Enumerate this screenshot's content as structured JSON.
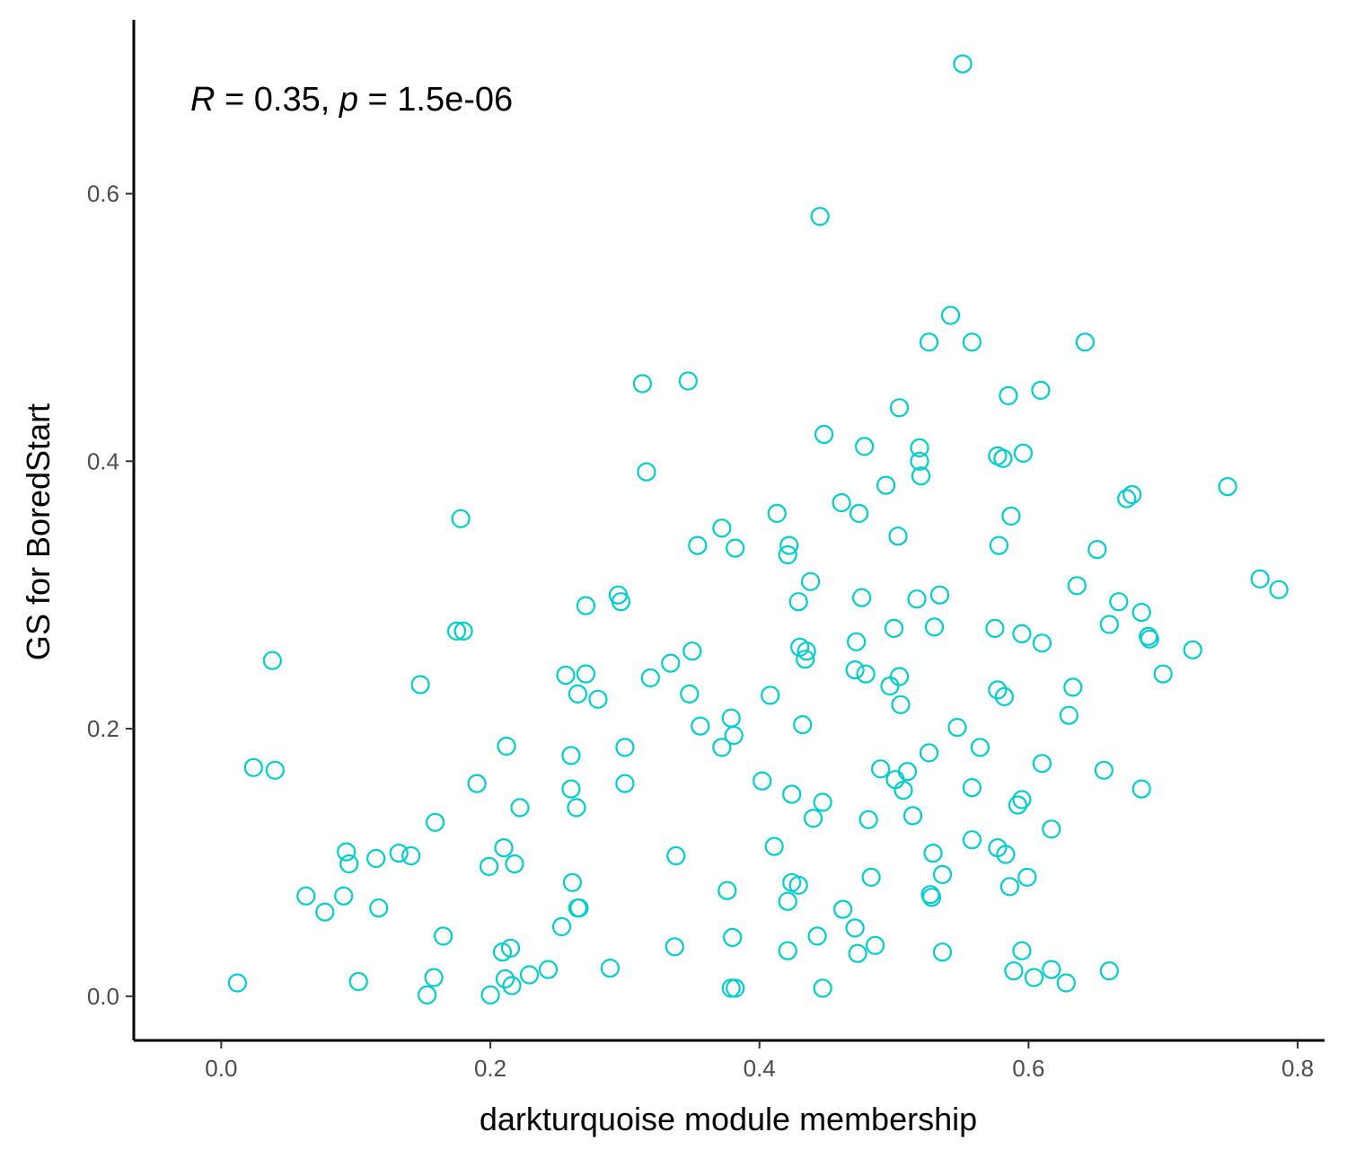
{
  "chart_data": {
    "type": "scatter",
    "title": "",
    "xlabel": "darkturquoise module membership",
    "ylabel": "GS for BoredStart",
    "xlim": [
      -0.065,
      0.82
    ],
    "ylim": [
      -0.033,
      0.73
    ],
    "x_ticks": [
      0.0,
      0.2,
      0.4,
      0.6,
      0.8
    ],
    "y_ticks": [
      0.0,
      0.2,
      0.4,
      0.6
    ],
    "x_tick_labels": [
      "0.0",
      "0.2",
      "0.4",
      "0.6",
      "0.8"
    ],
    "y_tick_labels": [
      "0.0",
      "0.2",
      "0.4",
      "0.6"
    ],
    "grid": false,
    "legend": "none",
    "marker": "open-circle",
    "point_color": "#00CED1",
    "annotation": {
      "r_symbol": "R",
      "r_rest": " = 0.35, ",
      "p_symbol": "p",
      "p_rest": " = 1.5e-06"
    },
    "series": [
      {
        "points": [
          [
            0.012,
            0.01
          ],
          [
            0.024,
            0.171
          ],
          [
            0.038,
            0.251
          ],
          [
            0.04,
            0.169
          ],
          [
            0.063,
            0.075
          ],
          [
            0.077,
            0.063
          ],
          [
            0.091,
            0.075
          ],
          [
            0.093,
            0.108
          ],
          [
            0.095,
            0.099
          ],
          [
            0.102,
            0.011
          ],
          [
            0.115,
            0.103
          ],
          [
            0.117,
            0.066
          ],
          [
            0.132,
            0.107
          ],
          [
            0.141,
            0.105
          ],
          [
            0.148,
            0.233
          ],
          [
            0.153,
            0.001
          ],
          [
            0.158,
            0.014
          ],
          [
            0.159,
            0.13
          ],
          [
            0.165,
            0.045
          ],
          [
            0.175,
            0.273
          ],
          [
            0.178,
            0.357
          ],
          [
            0.18,
            0.273
          ],
          [
            0.19,
            0.159
          ],
          [
            0.199,
            0.097
          ],
          [
            0.2,
            0.001
          ],
          [
            0.209,
            0.033
          ],
          [
            0.21,
            0.111
          ],
          [
            0.211,
            0.013
          ],
          [
            0.212,
            0.187
          ],
          [
            0.215,
            0.036
          ],
          [
            0.216,
            0.008
          ],
          [
            0.218,
            0.099
          ],
          [
            0.222,
            0.141
          ],
          [
            0.229,
            0.016
          ],
          [
            0.243,
            0.02
          ],
          [
            0.253,
            0.052
          ],
          [
            0.256,
            0.24
          ],
          [
            0.26,
            0.18
          ],
          [
            0.26,
            0.155
          ],
          [
            0.261,
            0.085
          ],
          [
            0.264,
            0.141
          ],
          [
            0.265,
            0.066
          ],
          [
            0.265,
            0.226
          ],
          [
            0.266,
            0.066
          ],
          [
            0.271,
            0.292
          ],
          [
            0.271,
            0.241
          ],
          [
            0.28,
            0.222
          ],
          [
            0.289,
            0.021
          ],
          [
            0.295,
            0.3
          ],
          [
            0.297,
            0.295
          ],
          [
            0.3,
            0.186
          ],
          [
            0.3,
            0.159
          ],
          [
            0.313,
            0.458
          ],
          [
            0.316,
            0.392
          ],
          [
            0.319,
            0.238
          ],
          [
            0.334,
            0.249
          ],
          [
            0.337,
            0.037
          ],
          [
            0.338,
            0.105
          ],
          [
            0.347,
            0.46
          ],
          [
            0.348,
            0.226
          ],
          [
            0.35,
            0.258
          ],
          [
            0.354,
            0.337
          ],
          [
            0.356,
            0.202
          ],
          [
            0.372,
            0.35
          ],
          [
            0.372,
            0.186
          ],
          [
            0.376,
            0.079
          ],
          [
            0.379,
            0.208
          ],
          [
            0.379,
            0.006
          ],
          [
            0.38,
            0.044
          ],
          [
            0.381,
            0.195
          ],
          [
            0.382,
            0.006
          ],
          [
            0.382,
            0.335
          ],
          [
            0.402,
            0.161
          ],
          [
            0.408,
            0.225
          ],
          [
            0.411,
            0.112
          ],
          [
            0.413,
            0.361
          ],
          [
            0.421,
            0.33
          ],
          [
            0.422,
            0.337
          ],
          [
            0.421,
            0.034
          ],
          [
            0.421,
            0.071
          ],
          [
            0.424,
            0.151
          ],
          [
            0.424,
            0.085
          ],
          [
            0.429,
            0.083
          ],
          [
            0.429,
            0.295
          ],
          [
            0.43,
            0.261
          ],
          [
            0.432,
            0.203
          ],
          [
            0.434,
            0.252
          ],
          [
            0.435,
            0.258
          ],
          [
            0.438,
            0.31
          ],
          [
            0.44,
            0.133
          ],
          [
            0.443,
            0.045
          ],
          [
            0.445,
            0.583
          ],
          [
            0.447,
            0.145
          ],
          [
            0.447,
            0.006
          ],
          [
            0.448,
            0.42
          ],
          [
            0.461,
            0.369
          ],
          [
            0.462,
            0.065
          ],
          [
            0.471,
            0.244
          ],
          [
            0.471,
            0.051
          ],
          [
            0.472,
            0.265
          ],
          [
            0.473,
            0.032
          ],
          [
            0.474,
            0.361
          ],
          [
            0.476,
            0.298
          ],
          [
            0.478,
            0.411
          ],
          [
            0.479,
            0.241
          ],
          [
            0.481,
            0.132
          ],
          [
            0.483,
            0.089
          ],
          [
            0.486,
            0.038
          ],
          [
            0.49,
            0.17
          ],
          [
            0.494,
            0.382
          ],
          [
            0.497,
            0.232
          ],
          [
            0.5,
            0.275
          ],
          [
            0.501,
            0.162
          ],
          [
            0.503,
            0.344
          ],
          [
            0.504,
            0.44
          ],
          [
            0.504,
            0.239
          ],
          [
            0.505,
            0.218
          ],
          [
            0.507,
            0.154
          ],
          [
            0.51,
            0.168
          ],
          [
            0.514,
            0.135
          ],
          [
            0.517,
            0.297
          ],
          [
            0.519,
            0.41
          ],
          [
            0.519,
            0.4
          ],
          [
            0.52,
            0.389
          ],
          [
            0.526,
            0.489
          ],
          [
            0.526,
            0.182
          ],
          [
            0.527,
            0.076
          ],
          [
            0.528,
            0.074
          ],
          [
            0.529,
            0.107
          ],
          [
            0.53,
            0.276
          ],
          [
            0.534,
            0.3
          ],
          [
            0.536,
            0.091
          ],
          [
            0.536,
            0.033
          ],
          [
            0.542,
            0.509
          ],
          [
            0.547,
            0.201
          ],
          [
            0.551,
            0.697
          ],
          [
            0.558,
            0.489
          ],
          [
            0.558,
            0.156
          ],
          [
            0.558,
            0.117
          ],
          [
            0.564,
            0.186
          ],
          [
            0.575,
            0.275
          ],
          [
            0.577,
            0.229
          ],
          [
            0.577,
            0.111
          ],
          [
            0.577,
            0.404
          ],
          [
            0.578,
            0.337
          ],
          [
            0.581,
            0.402
          ],
          [
            0.582,
            0.224
          ],
          [
            0.583,
            0.106
          ],
          [
            0.585,
            0.449
          ],
          [
            0.586,
            0.082
          ],
          [
            0.587,
            0.359
          ],
          [
            0.589,
            0.019
          ],
          [
            0.592,
            0.143
          ],
          [
            0.595,
            0.147
          ],
          [
            0.595,
            0.271
          ],
          [
            0.595,
            0.034
          ],
          [
            0.596,
            0.406
          ],
          [
            0.599,
            0.089
          ],
          [
            0.604,
            0.014
          ],
          [
            0.609,
            0.453
          ],
          [
            0.61,
            0.174
          ],
          [
            0.61,
            0.264
          ],
          [
            0.617,
            0.125
          ],
          [
            0.617,
            0.02
          ],
          [
            0.628,
            0.01
          ],
          [
            0.63,
            0.21
          ],
          [
            0.633,
            0.231
          ],
          [
            0.636,
            0.307
          ],
          [
            0.642,
            0.489
          ],
          [
            0.651,
            0.334
          ],
          [
            0.656,
            0.169
          ],
          [
            0.66,
            0.019
          ],
          [
            0.66,
            0.278
          ],
          [
            0.667,
            0.295
          ],
          [
            0.673,
            0.372
          ],
          [
            0.677,
            0.375
          ],
          [
            0.684,
            0.287
          ],
          [
            0.684,
            0.155
          ],
          [
            0.689,
            0.269
          ],
          [
            0.69,
            0.267
          ],
          [
            0.7,
            0.241
          ],
          [
            0.722,
            0.259
          ],
          [
            0.748,
            0.381
          ],
          [
            0.772,
            0.312
          ],
          [
            0.786,
            0.304
          ]
        ]
      }
    ]
  }
}
